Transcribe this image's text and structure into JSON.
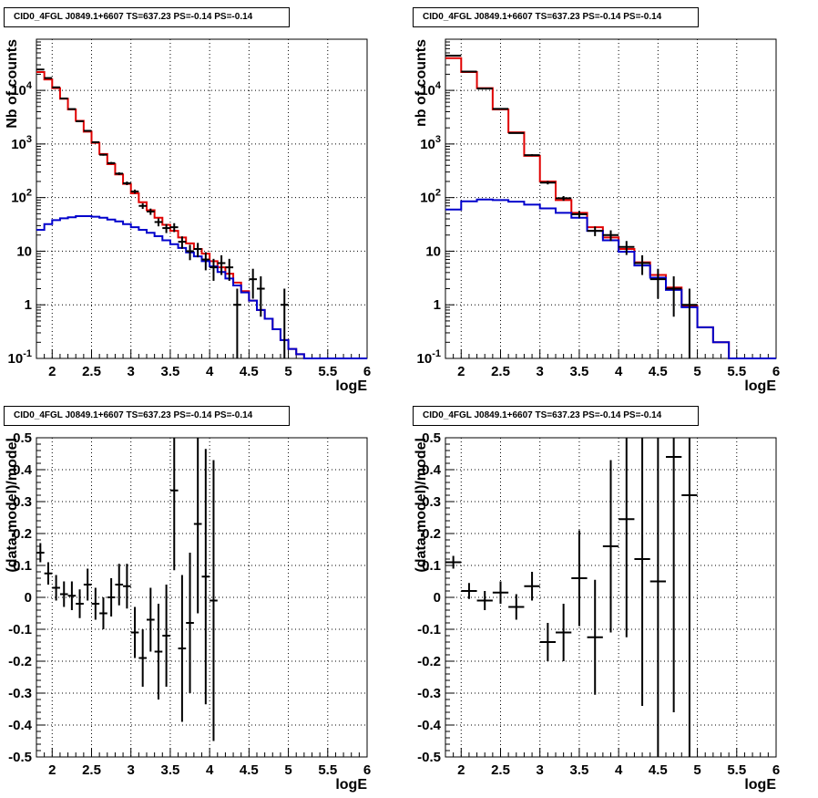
{
  "chart_data": [
    {
      "type": "histogram",
      "title": "CID0_4FGL J0849.1+6607 TS=637.23 PS=-0.14 PS=-0.14",
      "xlabel": "logE",
      "ylabel": "Nb of counts",
      "log_y": true,
      "xlim": [
        1.8,
        6.0
      ],
      "ylim": [
        0.1,
        90000
      ],
      "grid": true,
      "xticks": [
        "2",
        "2.5",
        "3",
        "3.5",
        "4",
        "4.5",
        "5",
        "5.5",
        "6"
      ],
      "xtick_values": [
        2,
        2.5,
        3,
        3.5,
        4,
        4.5,
        5,
        5.5,
        6
      ],
      "ytick_values": [
        0.1,
        1,
        10,
        100,
        1000,
        10000
      ],
      "yticks": [
        "10^-1",
        "1",
        "10",
        "10^2",
        "10^3",
        "10^4"
      ],
      "bin_edges": [
        1.8,
        1.9,
        2.0,
        2.1,
        2.2,
        2.3,
        2.4,
        2.5,
        2.6,
        2.7,
        2.8,
        2.9,
        3.0,
        3.1,
        3.2,
        3.3,
        3.4,
        3.5,
        3.6,
        3.7,
        3.8,
        3.9,
        4.0,
        4.1,
        4.2,
        4.3,
        4.4,
        4.5,
        4.6,
        4.7,
        4.8,
        4.9,
        5.0,
        5.1,
        5.2,
        5.3,
        5.4,
        5.5,
        5.6,
        5.7,
        5.8,
        5.9,
        6.0
      ],
      "series": [
        {
          "color": "#e00000",
          "style": "step",
          "values": [
            22000,
            16000,
            11000,
            7000,
            4400,
            2700,
            1700,
            1050,
            650,
            420,
            270,
            180,
            120,
            82,
            58,
            42,
            31,
            24,
            18,
            14,
            11,
            9,
            6.5,
            5,
            3.8,
            2.6,
            1.8,
            1.2,
            0.8,
            0.55,
            0.35,
            0.22,
            0.15,
            0.12,
            0.1,
            0.1,
            0.1,
            0.1,
            0.1,
            0.1,
            0.1,
            0.1
          ]
        },
        {
          "color": "#0000cc",
          "style": "step",
          "values": [
            25,
            32,
            38,
            41,
            43,
            45,
            45,
            44,
            42,
            39,
            36,
            32,
            28,
            25,
            22,
            19,
            16,
            13.5,
            11.5,
            9.5,
            8,
            6.5,
            5.2,
            4.1,
            3.1,
            2.3,
            1.7,
            1.2,
            0.8,
            0.55,
            0.35,
            0.22,
            0.15,
            0.12,
            0.1,
            0.1,
            0.1,
            0.1,
            0.1,
            0.1,
            0.1,
            0.1
          ]
        },
        {
          "color": "#000000",
          "style": "errorbar",
          "x": [
            1.85,
            1.95,
            2.05,
            2.15,
            2.25,
            2.35,
            2.45,
            2.55,
            2.65,
            2.75,
            2.85,
            2.95,
            3.05,
            3.15,
            3.25,
            3.35,
            3.45,
            3.55,
            3.65,
            3.75,
            3.85,
            3.95,
            4.05,
            4.15,
            4.25,
            4.35,
            4.55,
            4.65,
            4.95
          ],
          "values": [
            24500,
            17000,
            11400,
            7060,
            4480,
            2650,
            1760,
            1080,
            630,
            440,
            280,
            185,
            130,
            70,
            55,
            35,
            27,
            28,
            15,
            10,
            11,
            7,
            5,
            6,
            5,
            1,
            3,
            2,
            1
          ],
          "errors": [
            156,
            130,
            107,
            84,
            67,
            51,
            42,
            33,
            25,
            21,
            17,
            14,
            11,
            8.4,
            7.4,
            5.9,
            5.2,
            5.3,
            3.9,
            3.2,
            3.3,
            2.6,
            2.2,
            2.4,
            2.2,
            1,
            1.7,
            1.4,
            1
          ]
        }
      ]
    },
    {
      "type": "histogram",
      "title": "CID0_4FGL J0849.1+6607 TS=637.23 PS=-0.14 PS=-0.14",
      "xlabel": "logE",
      "ylabel": "nb of counts",
      "log_y": true,
      "xlim": [
        1.8,
        6.0
      ],
      "ylim": [
        0.1,
        90000
      ],
      "grid": true,
      "xticks": [
        "2",
        "2.5",
        "3",
        "3.5",
        "4",
        "4.5",
        "5",
        "5.5",
        "6"
      ],
      "xtick_values": [
        2,
        2.5,
        3,
        3.5,
        4,
        4.5,
        5,
        5.5,
        6
      ],
      "ytick_values": [
        0.1,
        1,
        10,
        100,
        1000,
        10000
      ],
      "yticks": [
        "10^-1",
        "1",
        "10",
        "10^2",
        "10^3",
        "10^4"
      ],
      "bin_edges": [
        1.8,
        2.0,
        2.2,
        2.4,
        2.6,
        2.8,
        3.0,
        3.2,
        3.4,
        3.6,
        3.8,
        4.0,
        4.2,
        4.4,
        4.6,
        4.8,
        5.0,
        5.2,
        5.4,
        5.6,
        5.8,
        6.0
      ],
      "series": [
        {
          "color": "#e00000",
          "style": "step",
          "values": [
            40000,
            22000,
            11000,
            4400,
            1650,
            600,
            200,
            90,
            52,
            28,
            18,
            11,
            6.2,
            3.6,
            2.1,
            0.95,
            0.38,
            0.2,
            0.1,
            0.1,
            0.1
          ]
        },
        {
          "color": "#0000cc",
          "style": "step",
          "values": [
            60,
            85,
            92,
            90,
            84,
            74,
            63,
            52,
            42,
            24,
            16,
            9.8,
            5.4,
            3.2,
            1.9,
            0.9,
            0.38,
            0.2,
            0.1,
            0.1,
            0.1
          ]
        },
        {
          "color": "#000000",
          "style": "errorbar",
          "x": [
            1.9,
            2.1,
            2.3,
            2.5,
            2.7,
            2.9,
            3.1,
            3.3,
            3.5,
            3.7,
            3.9,
            4.1,
            4.3,
            4.5,
            4.7,
            4.9
          ],
          "values": [
            44500,
            22400,
            10800,
            4510,
            1600,
            620,
            190,
            97,
            49,
            24,
            20,
            12,
            6,
            3,
            2,
            1
          ],
          "errors": [
            211,
            150,
            104,
            67,
            40,
            25,
            13.8,
            9.8,
            7,
            4.9,
            4.5,
            3.5,
            2.4,
            1.7,
            1.4,
            1
          ]
        }
      ]
    },
    {
      "type": "errorbar",
      "title": "CID0_4FGL J0849.1+6607 TS=637.23 PS=-0.14 PS=-0.14",
      "xlabel": "logE",
      "ylabel": "(data-model)/model",
      "log_y": false,
      "xlim": [
        1.8,
        6.0
      ],
      "ylim": [
        -0.5,
        0.5
      ],
      "grid": true,
      "xticks": [
        "2",
        "2.5",
        "3",
        "3.5",
        "4",
        "4.5",
        "5",
        "5.5",
        "6"
      ],
      "xtick_values": [
        2,
        2.5,
        3,
        3.5,
        4,
        4.5,
        5,
        5.5,
        6
      ],
      "ytick_values": [
        -0.5,
        -0.4,
        -0.3,
        -0.2,
        -0.1,
        0,
        0.1,
        0.2,
        0.3,
        0.4,
        0.5
      ],
      "yticks": [
        "-0.5",
        "-0.4",
        "-0.3",
        "-0.2",
        "-0.1",
        "0",
        "0.1",
        "0.2",
        "0.3",
        "0.4",
        "0.5"
      ],
      "bin_width": 0.1,
      "series": [
        {
          "color": "#000000",
          "style": "errorbar",
          "x": [
            1.85,
            1.95,
            2.05,
            2.15,
            2.25,
            2.35,
            2.45,
            2.55,
            2.65,
            2.75,
            2.85,
            2.95,
            3.05,
            3.15,
            3.25,
            3.35,
            3.45,
            3.55,
            3.65,
            3.75,
            3.85,
            3.95,
            4.05
          ],
          "values": [
            0.14,
            0.075,
            0.03,
            0.01,
            0.005,
            -0.02,
            0.04,
            -0.02,
            -0.05,
            0.0,
            0.04,
            0.035,
            -0.11,
            -0.19,
            -0.07,
            -0.17,
            -0.12,
            0.335,
            -0.16,
            -0.08,
            0.23,
            0.065,
            -0.01
          ],
          "errors": [
            0.03,
            0.035,
            0.04,
            0.04,
            0.045,
            0.045,
            0.05,
            0.05,
            0.05,
            0.06,
            0.065,
            0.07,
            0.08,
            0.09,
            0.1,
            0.15,
            0.16,
            0.25,
            0.23,
            0.22,
            0.28,
            0.4,
            0.44
          ]
        }
      ]
    },
    {
      "type": "errorbar",
      "title": "CID0_4FGL J0849.1+6607 TS=637.23 PS=-0.14 PS=-0.14",
      "xlabel": "logE",
      "ylabel": "(data-model)/model",
      "log_y": false,
      "xlim": [
        1.8,
        6.0
      ],
      "ylim": [
        -0.5,
        0.5
      ],
      "grid": true,
      "xticks": [
        "2",
        "2.5",
        "3",
        "3.5",
        "4",
        "4.5",
        "5",
        "5.5",
        "6"
      ],
      "xtick_values": [
        2,
        2.5,
        3,
        3.5,
        4,
        4.5,
        5,
        5.5,
        6
      ],
      "ytick_values": [
        -0.5,
        -0.4,
        -0.3,
        -0.2,
        -0.1,
        0,
        0.1,
        0.2,
        0.3,
        0.4,
        0.5
      ],
      "yticks": [
        "-0.5",
        "-0.4",
        "-0.3",
        "-0.2",
        "-0.1",
        "0",
        "0.1",
        "0.2",
        "0.3",
        "0.4",
        "0.5"
      ],
      "bin_width": 0.2,
      "series": [
        {
          "color": "#000000",
          "style": "errorbar",
          "x": [
            1.9,
            2.1,
            2.3,
            2.5,
            2.7,
            2.9,
            3.1,
            3.3,
            3.5,
            3.7,
            3.9,
            4.1,
            4.3,
            4.5,
            4.7,
            4.9
          ],
          "values": [
            0.11,
            0.02,
            -0.01,
            0.015,
            -0.03,
            0.035,
            -0.14,
            -0.11,
            0.06,
            -0.125,
            0.16,
            0.245,
            0.12,
            0.05,
            0.44,
            0.32
          ],
          "errors": [
            0.02,
            0.025,
            0.03,
            0.035,
            0.04,
            0.045,
            0.06,
            0.09,
            0.15,
            0.18,
            0.27,
            0.37,
            0.46,
            0.6,
            0.8,
            1.0
          ]
        }
      ]
    }
  ]
}
